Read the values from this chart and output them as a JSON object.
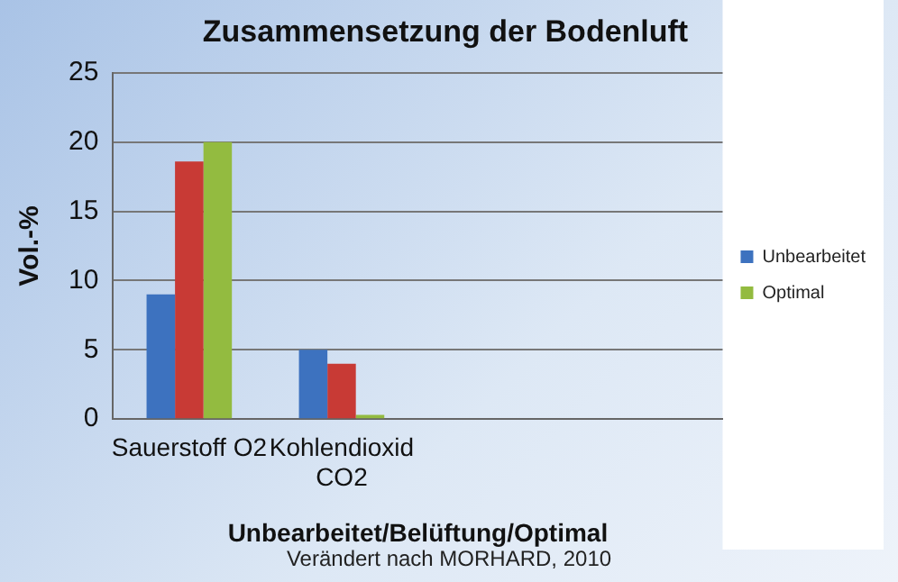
{
  "chart_data": {
    "type": "bar",
    "title": "Zusammensetzung der Bodenluft",
    "xlabel": "Unbearbeitet/Belüftung/Optimal",
    "ylabel": "Vol.-%",
    "annotations": [
      "Verändert nach MORHARD, 2010"
    ],
    "categories": [
      "Sauerstoff O2",
      "Kohlendioxid CO2",
      null,
      null
    ],
    "series": [
      {
        "name": "Unbearbeitet",
        "color": "#3d72bf",
        "values": [
          9,
          5,
          null,
          null
        ]
      },
      {
        "color": "#c83a35",
        "values": [
          18.6,
          4,
          null,
          null
        ]
      },
      {
        "name": "Optimal",
        "color": "#93bb40",
        "values": [
          20,
          0.3,
          null,
          null
        ]
      }
    ],
    "ylim": [
      0,
      25
    ],
    "yticks": [
      0,
      5,
      10,
      15,
      20,
      25
    ],
    "grid": "y",
    "legend": "right"
  }
}
